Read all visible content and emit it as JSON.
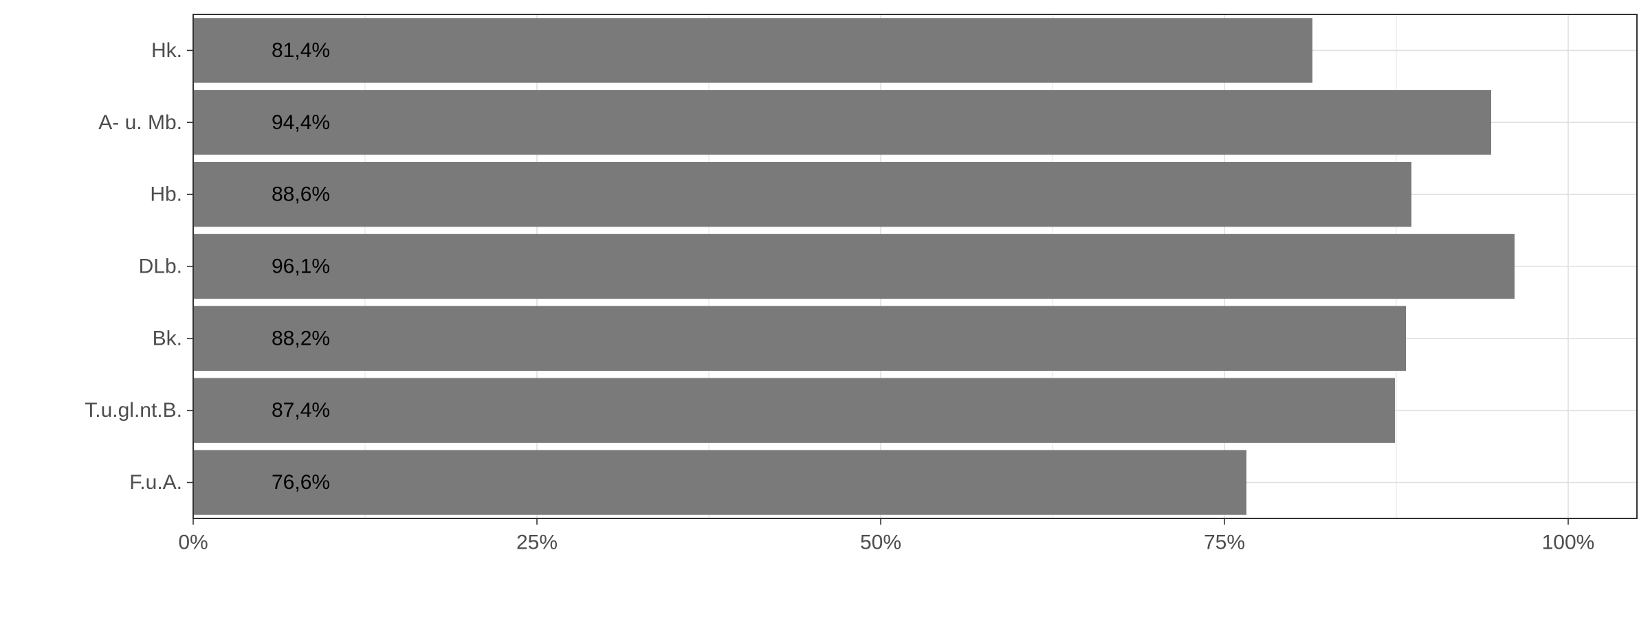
{
  "chart_data": {
    "type": "bar",
    "orientation": "horizontal",
    "categories": [
      "Hk.",
      "A- u. Mb.",
      "Hb.",
      "DLb.",
      "Bk.",
      "T.u.gl.nt.B.",
      "F.u.A."
    ],
    "values": [
      81.4,
      94.4,
      88.6,
      96.1,
      88.2,
      87.4,
      76.6
    ],
    "data_labels": [
      "81,4%",
      "94,4%",
      "88,6%",
      "96,1%",
      "88,2%",
      "87,4%",
      "76,6%"
    ],
    "x_ticks": [
      0,
      25,
      50,
      75,
      100
    ],
    "x_tick_labels": [
      "0%",
      "25%",
      "50%",
      "75%",
      "100%"
    ],
    "xlim": [
      0,
      105
    ],
    "grid": true,
    "legend": "none",
    "colors": {
      "bar": "#7a7a7a",
      "grid": "#e0e0e0",
      "axis": "#333333",
      "text": "#4d4d4d"
    }
  }
}
